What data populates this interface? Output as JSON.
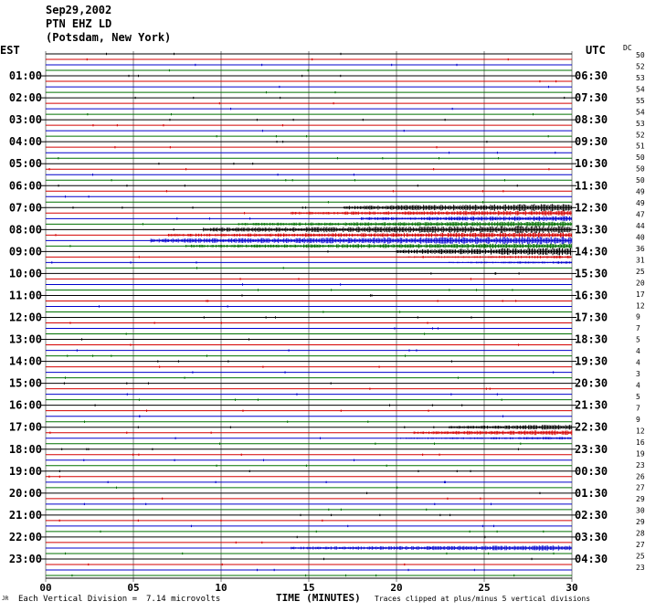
{
  "header": {
    "date": "Sep29,2002",
    "station": "PTN EHZ LD",
    "location": "(Potsdam, New York)"
  },
  "left_axis_label": "EST",
  "right_axis_label": "UTC",
  "dc_label": "DC",
  "footer": {
    "corner_mark": "JR",
    "division_label": "Each Vertical Division =",
    "division_value": "7.14 microvolts",
    "time_label": "TIME (MINUTES)",
    "clip_note": "Traces clipped at plus/minus 5 vertical divisions"
  },
  "colors": {
    "black": "#000000",
    "red": "#d40000",
    "blue": "#0000cc",
    "green": "#007000",
    "grid": "#808080"
  },
  "chart_data": {
    "type": "line",
    "x_ticks": [
      "00",
      "05",
      "10",
      "15",
      "20",
      "25",
      "30"
    ],
    "xlim": [
      0,
      30
    ],
    "xlabel": "TIME (MINUTES)",
    "trace_colors": [
      "black",
      "red",
      "blue",
      "green"
    ],
    "est_labels": [
      "01:00",
      "02:00",
      "03:00",
      "04:00",
      "05:00",
      "06:00",
      "07:00",
      "08:00",
      "09:00",
      "10:00",
      "11:00",
      "12:00",
      "13:00",
      "14:00",
      "15:00",
      "16:00",
      "17:00",
      "18:00",
      "19:00",
      "20:00",
      "21:00",
      "22:00",
      "23:00"
    ],
    "utc_labels": [
      "06:30",
      "07:30",
      "08:30",
      "09:30",
      "10:30",
      "11:30",
      "12:30",
      "13:30",
      "14:30",
      "15:30",
      "16:30",
      "17:30",
      "18:30",
      "19:30",
      "20:30",
      "21:30",
      "22:30",
      "23:30",
      "00:30",
      "01:30",
      "02:30",
      "03:30",
      "04:30"
    ],
    "dc_values": [
      "50",
      "52",
      "53",
      "54",
      "55",
      "54",
      "53",
      "52",
      "51",
      "50",
      "50",
      "50",
      "49",
      "49",
      "47",
      "44",
      "40",
      "36",
      "31",
      "25",
      "20",
      "17",
      "12",
      "9",
      "7",
      "5",
      "4",
      "4",
      "3",
      "4",
      "5",
      "7",
      "9",
      "12",
      "16",
      "19",
      "23",
      "26",
      "27",
      "29",
      "30",
      "29",
      "28",
      "27",
      "25",
      "23"
    ],
    "activity_rows": [
      {
        "row": 28,
        "start_min": 17,
        "level": 3
      },
      {
        "row": 29,
        "start_min": 14,
        "level": 2
      },
      {
        "row": 30,
        "start_min": 18,
        "level": 2
      },
      {
        "row": 31,
        "start_min": 11,
        "level": 2
      },
      {
        "row": 32,
        "start_min": 9,
        "level": 3
      },
      {
        "row": 33,
        "start_min": 7,
        "level": 2
      },
      {
        "row": 34,
        "start_min": 6,
        "level": 3
      },
      {
        "row": 35,
        "start_min": 8,
        "level": 2
      },
      {
        "row": 36,
        "start_min": 20,
        "level": 3
      },
      {
        "row": 37,
        "start_min": 20,
        "level": 1
      },
      {
        "row": 38,
        "start_min": 23,
        "level": 1
      },
      {
        "row": 68,
        "start_min": 23,
        "level": 2
      },
      {
        "row": 69,
        "start_min": 21,
        "level": 2
      },
      {
        "row": 70,
        "start_min": 20,
        "level": 1
      },
      {
        "row": 90,
        "start_min": 14,
        "level": 2
      }
    ]
  }
}
